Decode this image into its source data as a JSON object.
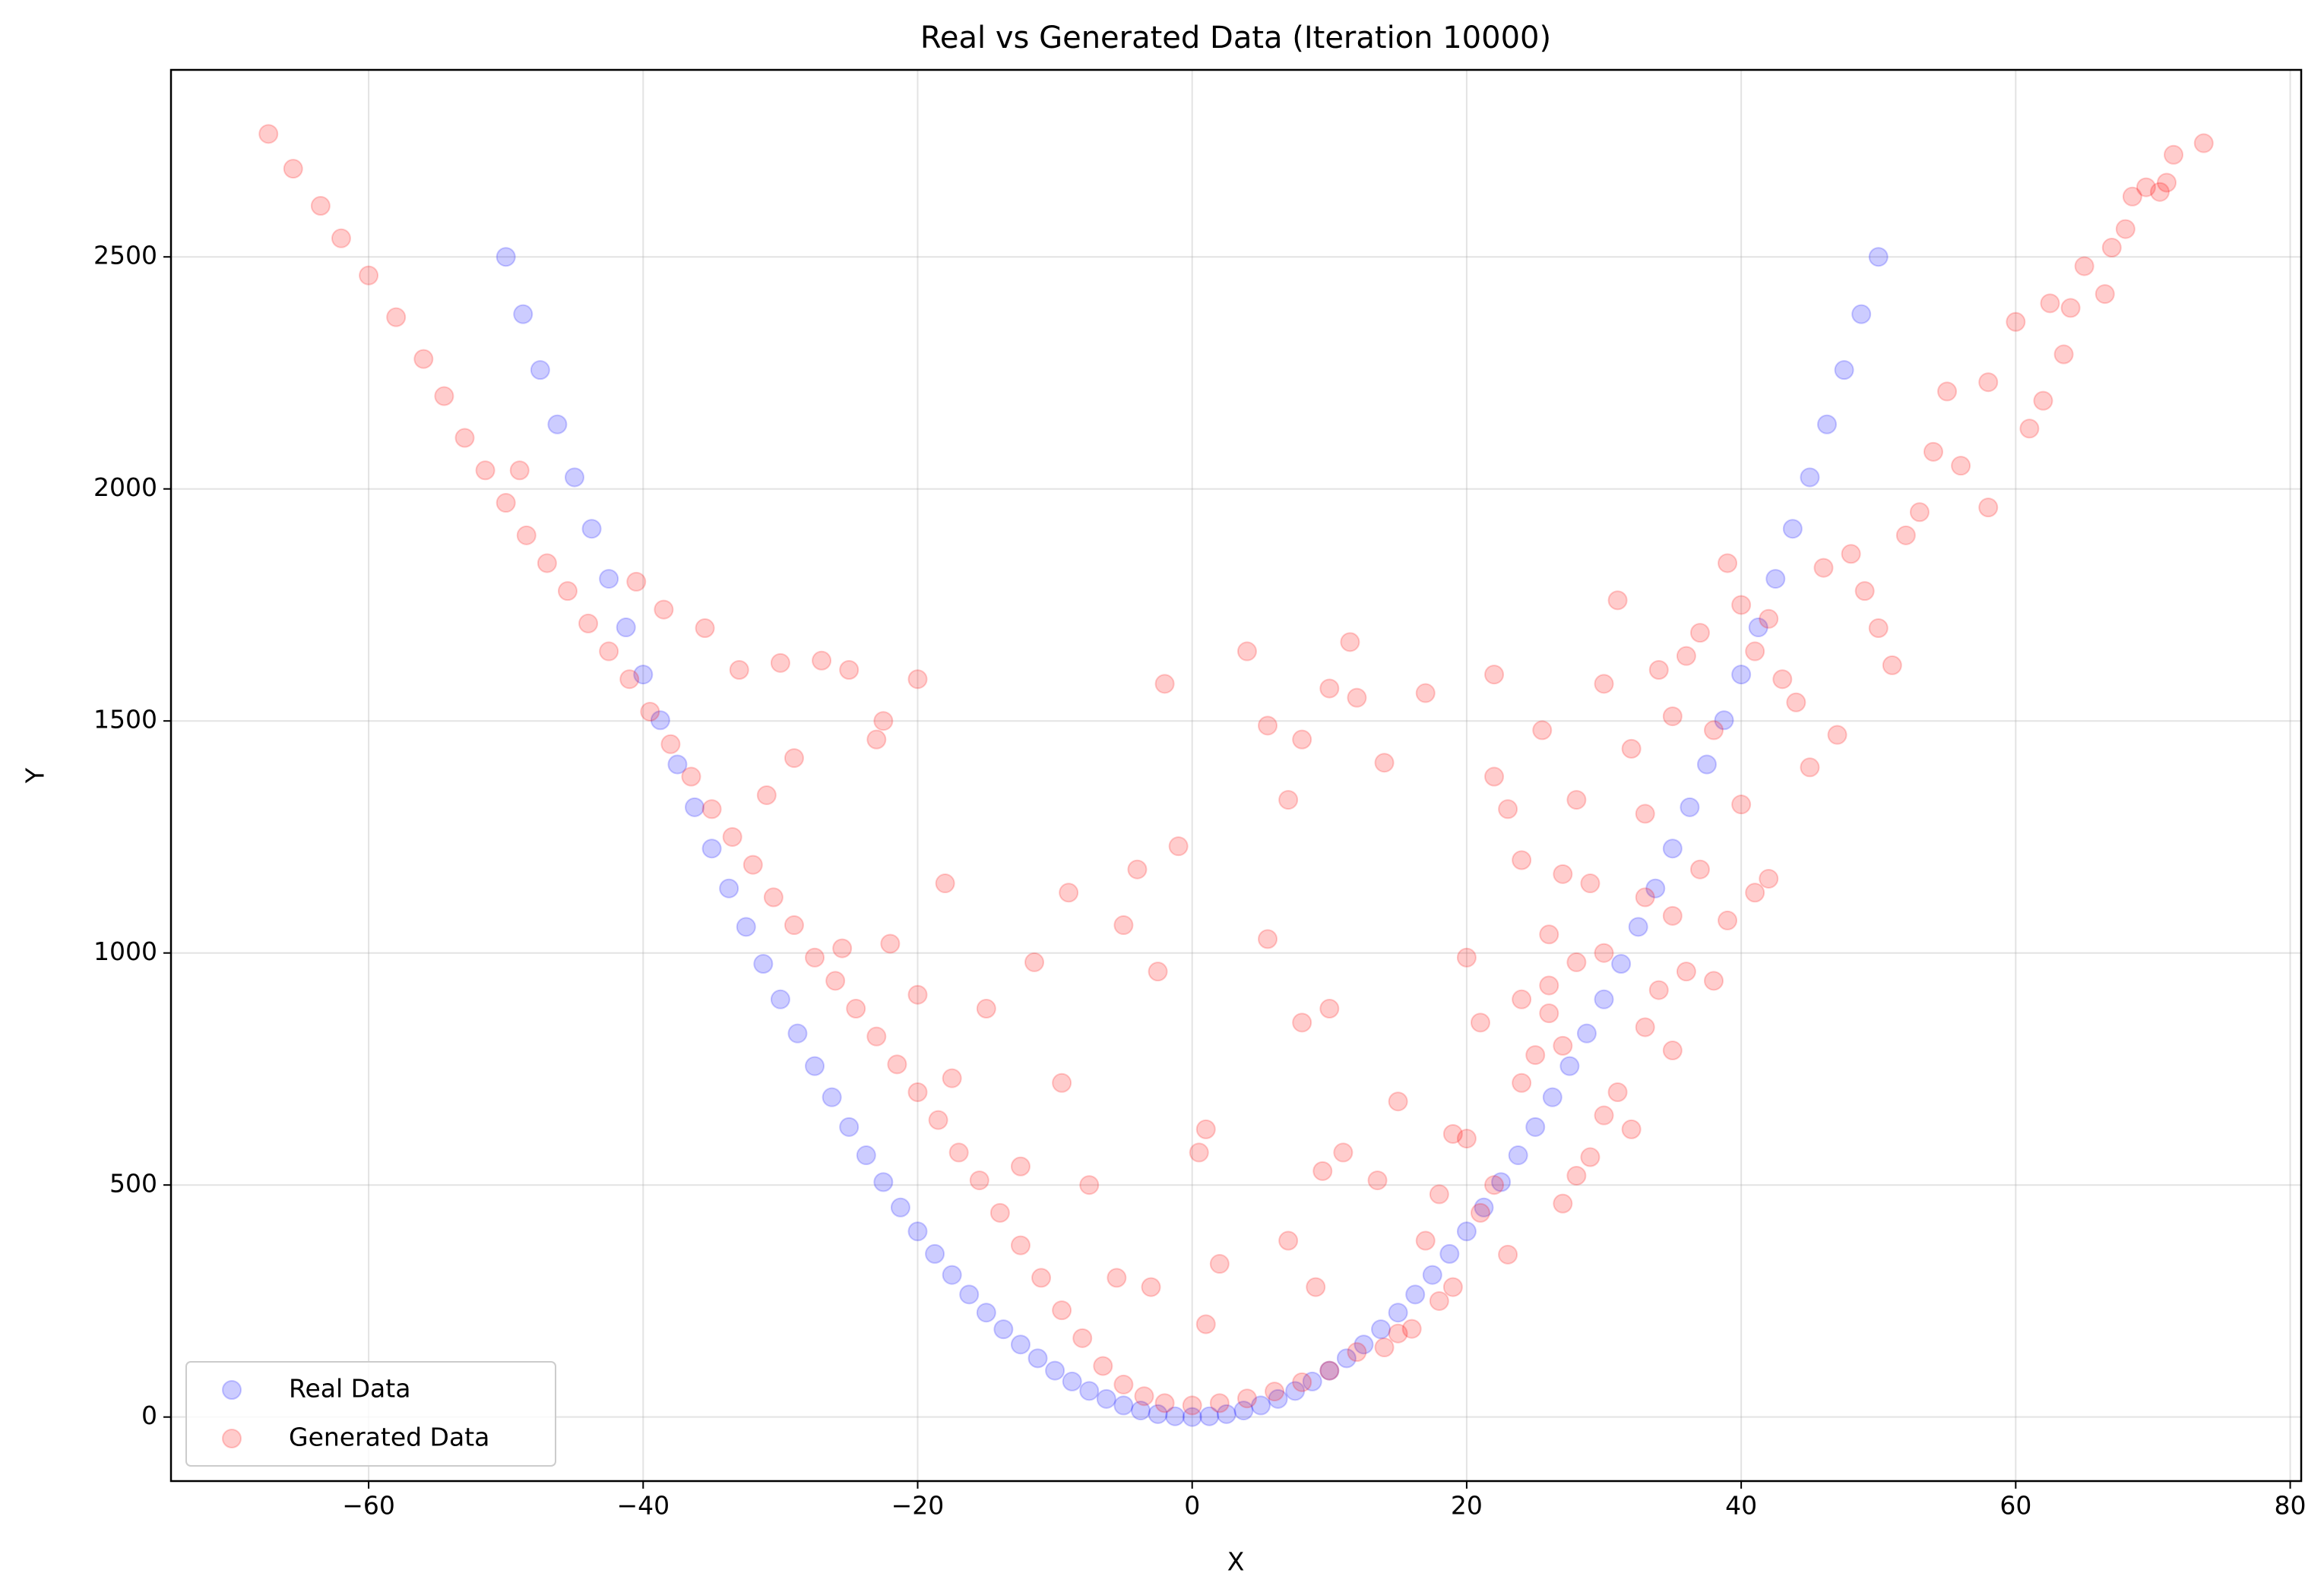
{
  "chart_data": {
    "type": "scatter",
    "title": "Real vs Generated Data (Iteration 10000)",
    "x_label": "X",
    "y_label": "Y",
    "xlim": [
      -74.4,
      80.8
    ],
    "ylim": [
      -138,
      2903
    ],
    "xticks": [
      {
        "value": -60,
        "label": "−60"
      },
      {
        "value": -40,
        "label": "−40"
      },
      {
        "value": -20,
        "label": "−20"
      },
      0,
      20,
      40,
      60,
      80
    ],
    "yticks": [
      0,
      500,
      1000,
      1500,
      2000,
      2500
    ],
    "grid": true,
    "legend": "lower left",
    "alpha": 0.2,
    "series": [
      {
        "name": "Real Data",
        "color": "#0000ff",
        "x": [
          -50,
          -48.75,
          -47.5,
          -46.25,
          -45,
          -43.75,
          -42.5,
          -41.25,
          -40,
          -38.75,
          -37.5,
          -36.25,
          -35,
          -33.75,
          -32.5,
          -31.25,
          -30,
          -28.75,
          -27.5,
          -26.25,
          -25,
          -23.75,
          -22.5,
          -21.25,
          -20,
          -18.75,
          -17.5,
          -16.25,
          -15,
          -13.75,
          -12.5,
          -11.25,
          -10,
          -8.75,
          -7.5,
          -6.25,
          -5,
          -3.75,
          -2.5,
          -1.25,
          0,
          1.25,
          2.5,
          3.75,
          5,
          6.25,
          7.5,
          8.75,
          10,
          11.25,
          12.5,
          13.75,
          15,
          16.25,
          17.5,
          18.75,
          20,
          21.25,
          22.5,
          23.75,
          25,
          26.25,
          27.5,
          28.75,
          30,
          31.25,
          32.5,
          33.75,
          35,
          36.25,
          37.5,
          38.75,
          40,
          41.25,
          42.5,
          43.75,
          45,
          46.25,
          47.5,
          48.75,
          50
        ],
        "values": [
          2500,
          2376.5625,
          2256.25,
          2139.0625,
          2025,
          1914.0625,
          1806.25,
          1701.5625,
          1600,
          1501.5625,
          1406.25,
          1314.0625,
          1225,
          1139.0625,
          1056.25,
          976.5625,
          900,
          826.5625,
          756.25,
          689.0625,
          625,
          564.0625,
          506.25,
          451.5625,
          400,
          351.5625,
          306.25,
          264.0625,
          225,
          189.0625,
          156.25,
          126.5625,
          100,
          76.5625,
          56.25,
          39.0625,
          25,
          14.0625,
          6.25,
          1.5625,
          0,
          1.5625,
          6.25,
          14.0625,
          25,
          39.0625,
          56.25,
          76.5625,
          100,
          126.5625,
          156.25,
          189.0625,
          225,
          264.0625,
          306.25,
          351.5625,
          400,
          451.5625,
          506.25,
          564.0625,
          625,
          689.0625,
          756.25,
          826.5625,
          900,
          976.5625,
          1056.25,
          1139.0625,
          1225,
          1314.0625,
          1406.25,
          1501.5625,
          1600,
          1701.5625,
          1806.25,
          1914.0625,
          2025,
          2139.0625,
          2256.25,
          2376.5625,
          2500
        ]
      },
      {
        "name": "Generated Data",
        "color": "#ff0000",
        "x": [
          -67.3,
          -65.5,
          -63.5,
          -62,
          -60,
          -58,
          -56,
          -54.5,
          -53,
          -51.5,
          -50,
          -48.5,
          -47,
          -45.5,
          -44,
          -42.5,
          -41,
          -39.5,
          -38,
          -36.5,
          -35,
          -33.5,
          -32,
          -30.5,
          -29,
          -27.5,
          -26,
          -24.5,
          -23,
          -21.5,
          -20,
          -18.5,
          -17,
          -15.5,
          -14,
          -12.5,
          -11,
          -9.5,
          -8,
          -6.5,
          -5,
          -3.5,
          -2,
          0,
          2,
          4,
          6,
          8,
          10,
          12,
          -49,
          -40.5,
          -38.5,
          -35.5,
          -33,
          -30,
          -27,
          -25,
          -22.5,
          -20,
          -23,
          -29,
          -31,
          -25.5,
          -22,
          -20,
          -18,
          -17.5,
          -15,
          -12.5,
          -9.5,
          -7.5,
          -9,
          -11.5,
          -5,
          -4,
          -1,
          -2,
          -2.5,
          -5.5,
          -3,
          1,
          0.5,
          1,
          2,
          4,
          5.5,
          5.5,
          7,
          8,
          8,
          10,
          11.5,
          12,
          14,
          17,
          22,
          10,
          11,
          9.5,
          13.5,
          15,
          7,
          9,
          20,
          21,
          22,
          23,
          24,
          25.5,
          26,
          27,
          28,
          29,
          30,
          31,
          32,
          33,
          34,
          35,
          36,
          37,
          38,
          39,
          40,
          41,
          42,
          43,
          44,
          45,
          46,
          47,
          48,
          49,
          50,
          51,
          52,
          53,
          54,
          55,
          56,
          58,
          58,
          60,
          61,
          62,
          62.5,
          63.5,
          64,
          65,
          66.5,
          67,
          68,
          68.5,
          69.5,
          70.5,
          71,
          71.5,
          73.7,
          20,
          21,
          22,
          23,
          24,
          25,
          26,
          27,
          28,
          29,
          30,
          31,
          32,
          33,
          34,
          35,
          36,
          37,
          38,
          39,
          40,
          41,
          42,
          16,
          17,
          18,
          19,
          14,
          15,
          18,
          19,
          27,
          35,
          33,
          30,
          28,
          26,
          24
        ],
        "values": [
          2765,
          2690,
          2610,
          2540,
          2460,
          2370,
          2280,
          2200,
          2110,
          2040,
          1970,
          1900,
          1840,
          1780,
          1710,
          1650,
          1590,
          1520,
          1450,
          1380,
          1310,
          1250,
          1190,
          1120,
          1060,
          990,
          940,
          880,
          820,
          760,
          700,
          640,
          570,
          510,
          440,
          370,
          300,
          230,
          170,
          110,
          70,
          45,
          30,
          25,
          30,
          40,
          55,
          75,
          100,
          140,
          2040,
          1800,
          1740,
          1700,
          1610,
          1625,
          1630,
          1610,
          1500,
          1590,
          1460,
          1420,
          1340,
          1010,
          1020,
          910,
          1150,
          730,
          880,
          540,
          720,
          500,
          1130,
          980,
          1060,
          1180,
          1230,
          1580,
          960,
          300,
          280,
          620,
          570,
          200,
          330,
          1650,
          1490,
          1030,
          1330,
          1460,
          850,
          1570,
          1670,
          1550,
          1410,
          1560,
          1600,
          880,
          570,
          530,
          510,
          680,
          380,
          280,
          990,
          850,
          1380,
          1310,
          1200,
          1480,
          1040,
          1170,
          1330,
          1150,
          1580,
          1760,
          1440,
          1300,
          1610,
          1510,
          1640,
          1690,
          1480,
          1840,
          1750,
          1650,
          1720,
          1590,
          1540,
          1400,
          1830,
          1470,
          1860,
          1780,
          1700,
          1620,
          1900,
          1950,
          2080,
          2210,
          2050,
          2230,
          1960,
          2360,
          2130,
          2190,
          2400,
          2290,
          2390,
          2480,
          2420,
          2520,
          2560,
          2630,
          2650,
          2640,
          2660,
          2720,
          2745,
          600,
          440,
          500,
          350,
          720,
          780,
          930,
          800,
          520,
          560,
          650,
          700,
          620,
          840,
          920,
          790,
          960,
          1180,
          940,
          1070,
          1320,
          1130,
          1160,
          190,
          380,
          250,
          280,
          150,
          180,
          480,
          610,
          460,
          1080,
          1120,
          1000,
          980,
          870,
          900
        ]
      }
    ]
  }
}
